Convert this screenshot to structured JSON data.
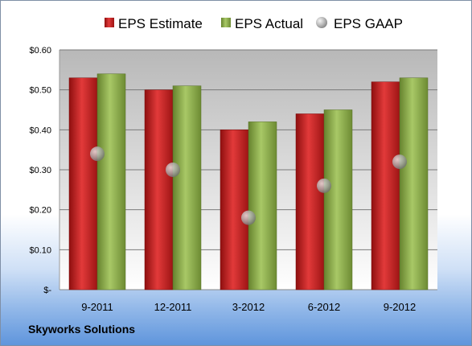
{
  "company": "Skyworks Solutions",
  "colors": {
    "estimate": "#c01e1e",
    "actual": "#8fb04a",
    "gaap": "#a9a9a9"
  },
  "chart_data": {
    "type": "bar",
    "categories": [
      "9-2011",
      "12-2011",
      "3-2012",
      "6-2012",
      "9-2012"
    ],
    "series": [
      {
        "name": "EPS Estimate",
        "kind": "bar",
        "values": [
          0.53,
          0.5,
          0.4,
          0.44,
          0.52
        ]
      },
      {
        "name": "EPS Actual",
        "kind": "bar",
        "values": [
          0.54,
          0.51,
          0.42,
          0.45,
          0.53
        ]
      },
      {
        "name": "EPS GAAP",
        "kind": "scatter",
        "values": [
          0.34,
          0.3,
          0.18,
          0.26,
          0.32
        ]
      }
    ],
    "ylim": [
      0,
      0.6
    ],
    "yticks": [
      0,
      0.1,
      0.2,
      0.3,
      0.4,
      0.5,
      0.6
    ],
    "ytick_labels": [
      "$-",
      "$0.10",
      "$0.20",
      "$0.30",
      "$0.40",
      "$0.50",
      "$0.60"
    ],
    "grid": true,
    "legend": "top"
  }
}
